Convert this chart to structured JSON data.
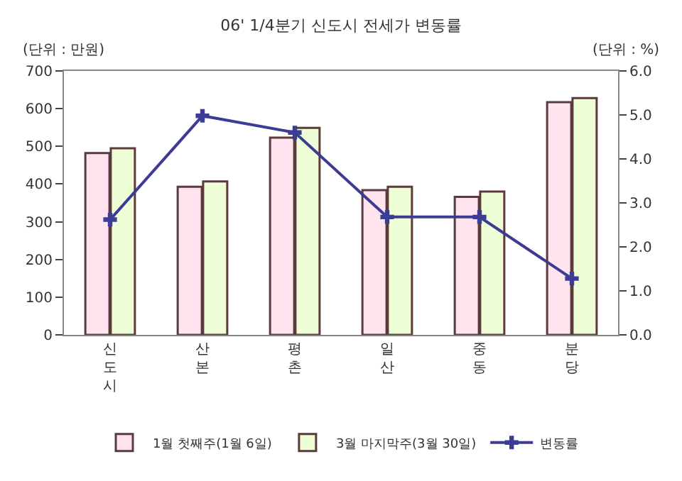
{
  "chart_data": {
    "type": "bar",
    "title": "06' 1/4분기 신도시 전세가 변동률",
    "ylabel": "(단위 : 만원)",
    "y2label": "(단위 : %)",
    "categories": [
      "신도시",
      "산본",
      "평촌",
      "일산",
      "중동",
      "분당"
    ],
    "series": [
      {
        "name": "1월 첫째주(1월 6일)",
        "color": "#ffe4f0",
        "values": [
          482,
          393,
          523,
          384,
          366,
          617
        ]
      },
      {
        "name": "3월 마지막주(3월 30일)",
        "color": "#eeffd8",
        "values": [
          495,
          407,
          549,
          393,
          380,
          628
        ]
      },
      {
        "name": "변동률",
        "type": "line",
        "axis": "y2",
        "color": "#3c3c94",
        "marker": "cross",
        "values": [
          2.62,
          4.98,
          4.6,
          2.68,
          2.68,
          1.28
        ]
      }
    ],
    "ylim": [
      0,
      700
    ],
    "yticks": [
      0,
      100,
      200,
      300,
      400,
      500,
      600,
      700
    ],
    "y2lim": [
      0,
      6
    ],
    "y2ticks": [
      {
        "value": 0,
        "label": "0.0"
      },
      {
        "value": 1,
        "label": "1.0"
      },
      {
        "value": 2,
        "label": "2.0"
      },
      {
        "value": 3,
        "label": "3.0"
      },
      {
        "value": 4,
        "label": "4.0"
      },
      {
        "value": 5,
        "label": "5.0"
      },
      {
        "value": 6,
        "label": "6.0"
      }
    ],
    "legend": "bottom"
  }
}
